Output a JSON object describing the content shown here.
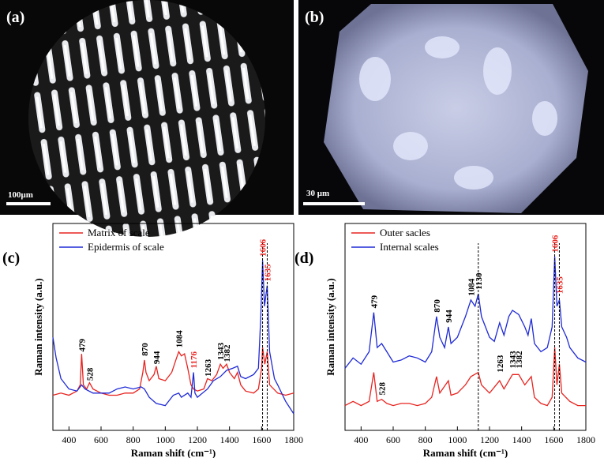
{
  "images": [
    {
      "label": "(a)",
      "scale_bar": "100μm"
    },
    {
      "label": "(b)",
      "scale_bar": "30 μm"
    }
  ],
  "chart_data": [
    {
      "type": "line",
      "label": "(c)",
      "ylabel": "Raman intensity (a.u.)",
      "xlabel": "Raman shift (cm⁻¹)",
      "xlim": [
        300,
        1800
      ],
      "xticks": [
        400,
        600,
        800,
        1000,
        1200,
        1400,
        1600,
        1800
      ],
      "ylim": [
        0,
        100
      ],
      "legend": "upper left",
      "series": [
        {
          "name": "Matrix of scale",
          "color": "#e8231f",
          "x": [
            300,
            350,
            400,
            450,
            470,
            479,
            490,
            510,
            528,
            550,
            600,
            650,
            700,
            750,
            800,
            840,
            860,
            870,
            880,
            900,
            930,
            944,
            960,
            1000,
            1040,
            1070,
            1084,
            1100,
            1120,
            1140,
            1160,
            1176,
            1200,
            1240,
            1263,
            1290,
            1320,
            1343,
            1360,
            1382,
            1400,
            1430,
            1450,
            1470,
            1500,
            1550,
            1580,
            1600,
            1606,
            1620,
            1635,
            1650,
            1700,
            1750,
            1800
          ],
          "values": [
            17,
            18,
            17,
            19,
            22,
            37,
            22,
            20,
            23,
            20,
            18,
            17,
            17,
            18,
            18,
            20,
            28,
            34,
            28,
            24,
            27,
            31,
            25,
            24,
            28,
            35,
            38,
            36,
            37,
            30,
            22,
            20,
            19,
            20,
            25,
            24,
            27,
            32,
            30,
            32,
            28,
            25,
            28,
            22,
            19,
            18,
            20,
            30,
            40,
            32,
            38,
            22,
            18,
            17,
            18
          ]
        },
        {
          "name": "Epidermis of scale",
          "color": "#1f2ad6",
          "x": [
            300,
            320,
            350,
            400,
            450,
            479,
            500,
            550,
            600,
            650,
            700,
            750,
            800,
            850,
            870,
            900,
            944,
            1000,
            1050,
            1084,
            1100,
            1140,
            1160,
            1176,
            1185,
            1200,
            1263,
            1300,
            1343,
            1382,
            1420,
            1450,
            1470,
            1500,
            1550,
            1580,
            1595,
            1606,
            1618,
            1635,
            1650,
            1680,
            1700,
            1750,
            1800
          ],
          "values": [
            45,
            35,
            25,
            20,
            19,
            22,
            20,
            18,
            18,
            18,
            20,
            21,
            20,
            21,
            20,
            16,
            13,
            12,
            17,
            18,
            16,
            18,
            16,
            28,
            18,
            16,
            20,
            24,
            26,
            29,
            30,
            31,
            26,
            25,
            27,
            30,
            55,
            82,
            60,
            70,
            38,
            25,
            22,
            14,
            8
          ]
        }
      ],
      "vlines": [
        1606,
        1635
      ],
      "annotations": [
        {
          "x": 479,
          "y": 38,
          "color": "#000000"
        },
        {
          "x": 528,
          "y": 24,
          "color": "#000000"
        },
        {
          "x": 870,
          "y": 36,
          "color": "#000000"
        },
        {
          "x": 944,
          "y": 32,
          "color": "#000000"
        },
        {
          "x": 1084,
          "y": 40,
          "color": "#000000"
        },
        {
          "x": 1176,
          "y": 30,
          "color": "#e8231f"
        },
        {
          "x": 1263,
          "y": 26,
          "color": "#000000"
        },
        {
          "x": 1343,
          "y": 34,
          "color": "#000000"
        },
        {
          "x": 1382,
          "y": 33,
          "color": "#000000"
        },
        {
          "x": 1606,
          "y": 84,
          "color": "#e8231f"
        },
        {
          "x": 1635,
          "y": 72,
          "color": "#e8231f"
        }
      ]
    },
    {
      "type": "line",
      "label": "(d)",
      "ylabel": "Raman intensity (a.u.)",
      "xlabel": "Raman shift (cm⁻¹)",
      "xlim": [
        300,
        1800
      ],
      "xticks": [
        400,
        600,
        800,
        1000,
        1200,
        1400,
        1600,
        1800
      ],
      "ylim": [
        0,
        100
      ],
      "legend": "upper left",
      "series": [
        {
          "name": "Outer sacles",
          "color": "#e8231f",
          "x": [
            300,
            350,
            400,
            450,
            479,
            500,
            528,
            560,
            600,
            650,
            700,
            750,
            800,
            840,
            870,
            890,
            944,
            960,
            1000,
            1050,
            1084,
            1130,
            1150,
            1200,
            1263,
            1290,
            1343,
            1382,
            1420,
            1460,
            1480,
            1520,
            1560,
            1590,
            1606,
            1620,
            1635,
            1650,
            1700,
            1750,
            1800
          ],
          "values": [
            12,
            14,
            12,
            14,
            28,
            14,
            15,
            13,
            12,
            13,
            13,
            12,
            13,
            16,
            26,
            18,
            24,
            17,
            18,
            22,
            26,
            28,
            22,
            18,
            24,
            20,
            27,
            27,
            22,
            26,
            16,
            13,
            12,
            16,
            40,
            22,
            32,
            18,
            14,
            12,
            12
          ]
        },
        {
          "name": "Internal scales",
          "color": "#1f2ad6",
          "x": [
            300,
            350,
            400,
            450,
            479,
            500,
            528,
            560,
            600,
            650,
            700,
            750,
            800,
            840,
            870,
            890,
            920,
            944,
            960,
            1000,
            1050,
            1084,
            1110,
            1130,
            1150,
            1200,
            1230,
            1263,
            1290,
            1320,
            1343,
            1382,
            1420,
            1440,
            1460,
            1480,
            1520,
            1560,
            1590,
            1606,
            1620,
            1635,
            1650,
            1680,
            1700,
            1750,
            1800
          ],
          "values": [
            30,
            35,
            32,
            38,
            57,
            40,
            42,
            38,
            33,
            34,
            36,
            35,
            33,
            38,
            55,
            45,
            40,
            50,
            42,
            45,
            55,
            63,
            60,
            66,
            55,
            45,
            43,
            52,
            46,
            55,
            58,
            56,
            50,
            46,
            54,
            42,
            38,
            40,
            50,
            84,
            60,
            63,
            50,
            45,
            40,
            35,
            33
          ]
        }
      ],
      "vlines": [
        1130,
        1606,
        1635
      ],
      "annotations": [
        {
          "x": 479,
          "y": 59,
          "color": "#000000"
        },
        {
          "x": 528,
          "y": 17,
          "color": "#000000"
        },
        {
          "x": 870,
          "y": 57,
          "color": "#000000"
        },
        {
          "x": 944,
          "y": 52,
          "color": "#000000"
        },
        {
          "x": 1084,
          "y": 65,
          "color": "#000000"
        },
        {
          "x": 1130,
          "y": 68,
          "color": "#000000"
        },
        {
          "x": 1263,
          "y": 28,
          "color": "#000000"
        },
        {
          "x": 1343,
          "y": 30,
          "color": "#000000"
        },
        {
          "x": 1382,
          "y": 30,
          "color": "#000000"
        },
        {
          "x": 1606,
          "y": 86,
          "color": "#e8231f"
        },
        {
          "x": 1635,
          "y": 66,
          "color": "#e8231f"
        }
      ]
    }
  ]
}
